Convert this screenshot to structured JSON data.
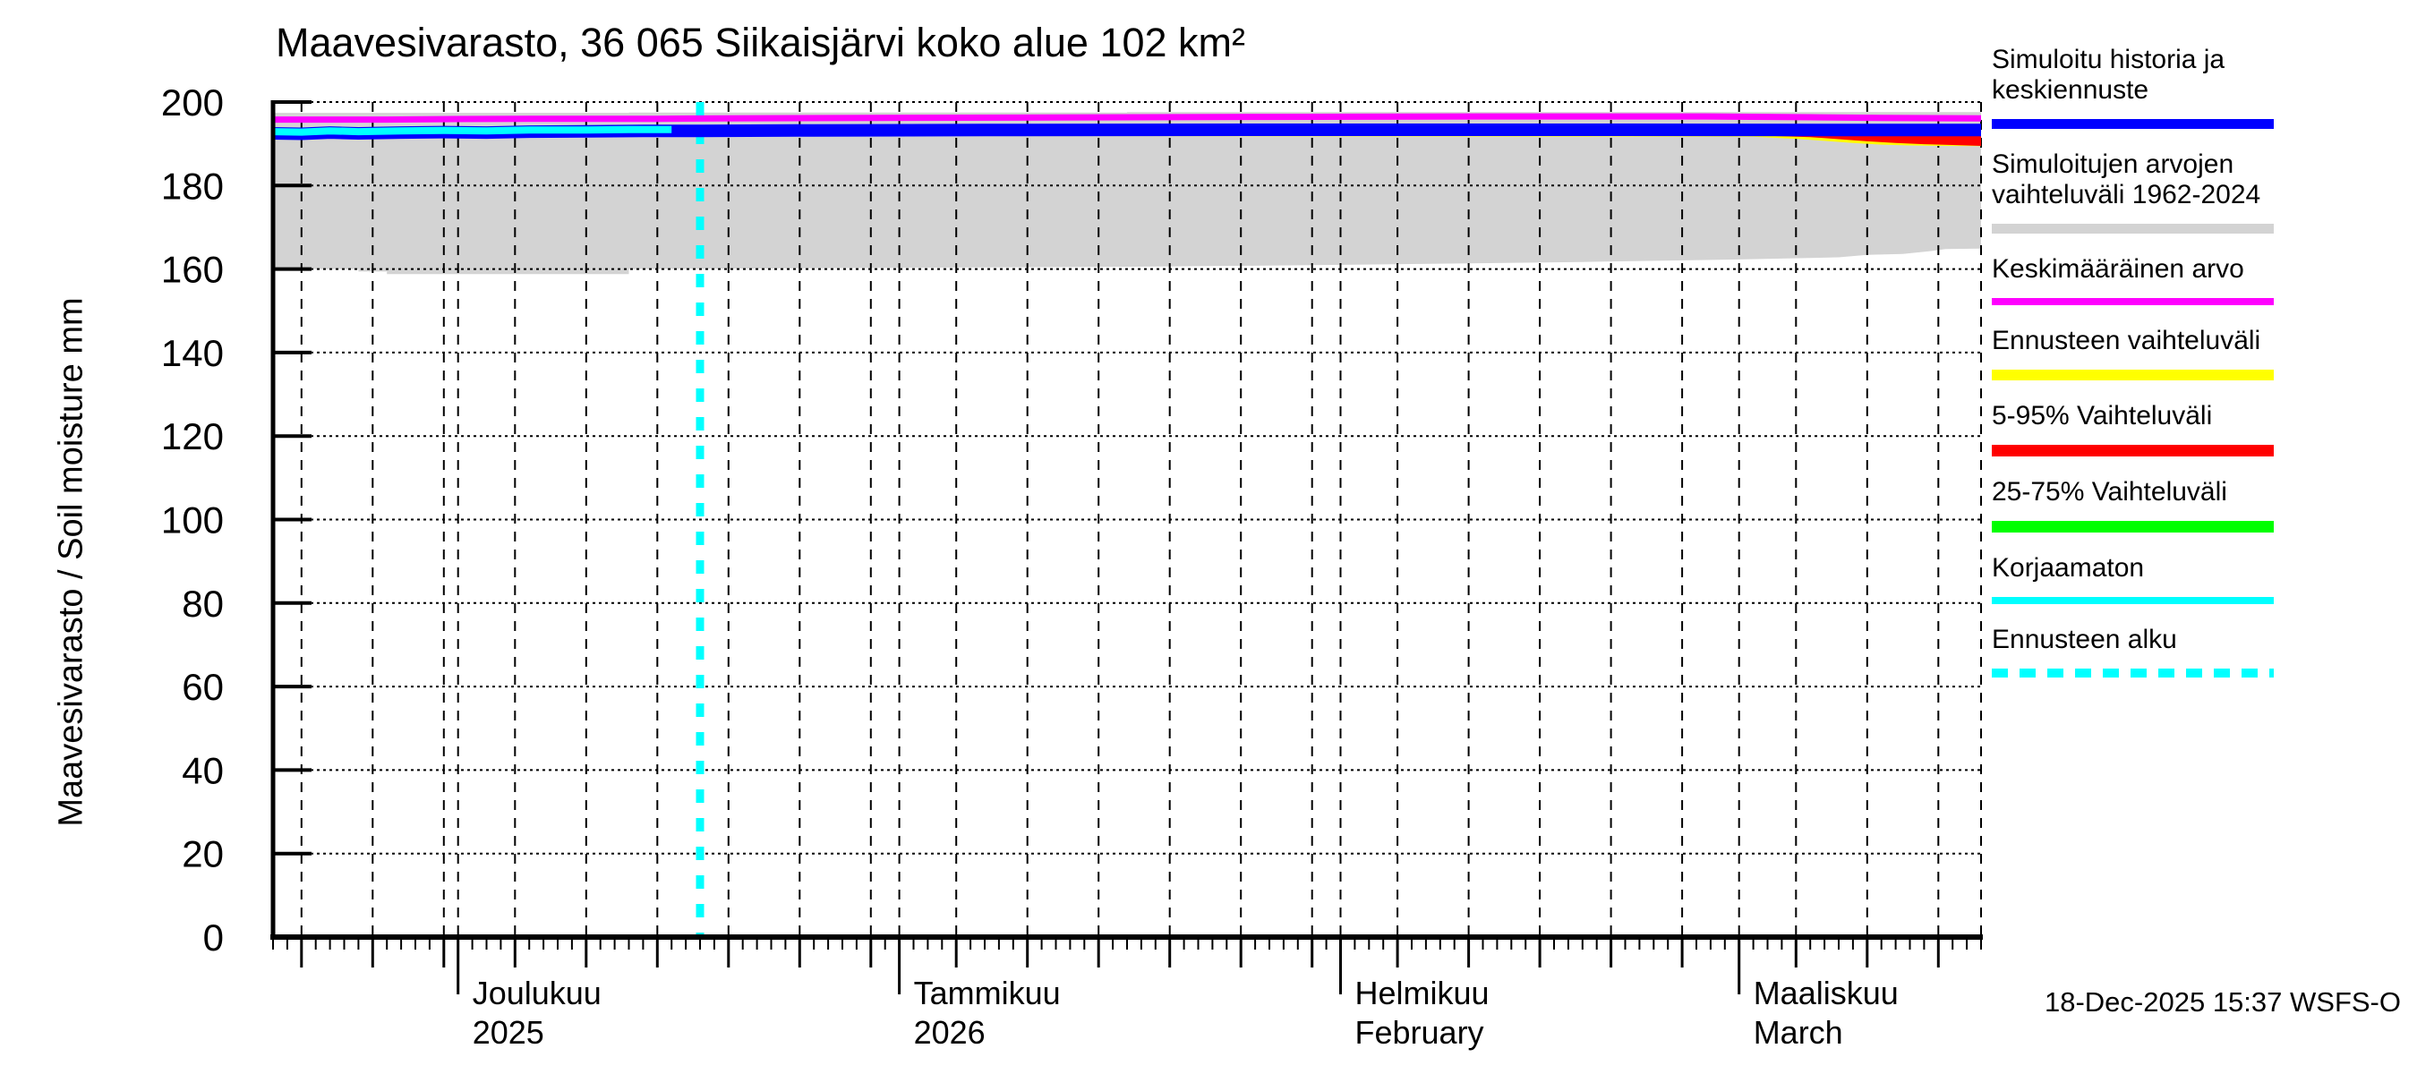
{
  "footer": {
    "timestamp": "18-Dec-2025 15:37 WSFS-O"
  },
  "legend": {
    "items": [
      {
        "lines": [
          "Simuloitu historia ja",
          "keskiennuste"
        ],
        "color": "#0000ff",
        "style": "solid",
        "thickness": 11
      },
      {
        "lines": [
          "Simuloitujen arvojen",
          "vaihteluväli 1962-2024"
        ],
        "color": "#d3d3d3",
        "style": "solid",
        "thickness": 11
      },
      {
        "lines": [
          "Keskimääräinen arvo"
        ],
        "color": "#ff00ff",
        "style": "solid",
        "thickness": 8
      },
      {
        "lines": [
          "Ennusteen vaihteluväli"
        ],
        "color": "#ffff00",
        "style": "solid",
        "thickness": 12
      },
      {
        "lines": [
          "5-95% Vaihteluväli"
        ],
        "color": "#ff0000",
        "style": "solid",
        "thickness": 13
      },
      {
        "lines": [
          "25-75% Vaihteluväli"
        ],
        "color": "#00ff00",
        "style": "solid",
        "thickness": 13
      },
      {
        "lines": [
          "Korjaamaton"
        ],
        "color": "#00ffff",
        "style": "solid",
        "thickness": 8
      },
      {
        "lines": [
          "Ennusteen alku"
        ],
        "color": "#00ffff",
        "style": "dashed",
        "thickness": 10
      }
    ]
  },
  "chart_data": {
    "type": "line",
    "title": "Maavesivarasto, 36 065 Siikaisjärvi koko alue 102 km²",
    "ylabel": "Maavesivarasto / Soil moisture  mm",
    "ylim": [
      0,
      200
    ],
    "y_ticks": [
      0,
      20,
      40,
      60,
      80,
      100,
      120,
      140,
      160,
      180,
      200
    ],
    "grid": "on",
    "legend_position": "right",
    "total_days": 120,
    "forecast_start_day": 30,
    "months": [
      {
        "label": "Joulukuu",
        "sublabel": "2025",
        "day": 13
      },
      {
        "label": "Tammikuu",
        "sublabel": "2026",
        "day": 44
      },
      {
        "label": "Helmikuu",
        "sublabel": "February",
        "day": 75
      },
      {
        "label": "Maaliskuu",
        "sublabel": "March",
        "day": 103
      }
    ],
    "grid_days": [
      2,
      7,
      12,
      17,
      22,
      27,
      32,
      37,
      42,
      48,
      53,
      58,
      63,
      68,
      73,
      79,
      84,
      89,
      94,
      99,
      107,
      112,
      117
    ],
    "plot": {
      "x0": 305,
      "x1": 2213,
      "y0": 1047,
      "y_top": 114
    },
    "colors": {
      "simulated": "#0000ff",
      "sim_range": "#d3d3d3",
      "mean": "#ff00ff",
      "forecast_range": "#ffff00",
      "range_5_95": "#ff0000",
      "range_25_75": "#00ff00",
      "uncorrected": "#00ffff",
      "forecast_start": "#00ffff",
      "axis": "#000000"
    },
    "series": {
      "sim_range": {
        "top": [
          [
            0,
            197.4
          ],
          [
            25,
            197.4
          ],
          [
            25,
            197.5
          ],
          [
            60,
            197.5
          ],
          [
            60,
            197.6
          ],
          [
            120,
            197.6
          ]
        ],
        "bottom": [
          [
            0,
            160
          ],
          [
            6,
            160
          ],
          [
            6,
            159.4
          ],
          [
            8,
            159.4
          ],
          [
            8,
            158.8
          ],
          [
            25,
            158.8
          ],
          [
            25,
            160
          ],
          [
            44,
            160.3
          ],
          [
            58,
            160.5
          ],
          [
            69,
            160.8
          ],
          [
            80,
            161.2
          ],
          [
            92,
            161.7
          ],
          [
            103,
            162.3
          ],
          [
            110,
            162.8
          ],
          [
            112,
            163.4
          ],
          [
            114.5,
            163.6
          ],
          [
            116.5,
            164.3
          ],
          [
            117.5,
            164.8
          ],
          [
            120,
            164.9
          ]
        ]
      },
      "forecast_range": {
        "top": [
          [
            30,
            194.0
          ],
          [
            120,
            194.0
          ]
        ],
        "bottom": [
          [
            30,
            191.9
          ],
          [
            104,
            191.7
          ],
          [
            107,
            191.2
          ],
          [
            109,
            190.7
          ],
          [
            111,
            190.2
          ],
          [
            113,
            189.8
          ],
          [
            115,
            189.6
          ],
          [
            117,
            189.5
          ],
          [
            120,
            189.45
          ]
        ]
      },
      "range_5_95": {
        "top": [
          [
            30,
            194.0
          ],
          [
            120,
            194.0
          ]
        ],
        "bottom": [
          [
            30,
            192.0
          ],
          [
            105,
            191.9
          ],
          [
            108,
            191.6
          ],
          [
            110,
            191.1
          ],
          [
            112,
            190.6
          ],
          [
            114,
            190.2
          ],
          [
            116,
            189.9
          ],
          [
            118,
            189.7
          ],
          [
            120,
            189.5
          ]
        ]
      },
      "range_25_75": {
        "top": [
          [
            30,
            194.0
          ],
          [
            120,
            194.0
          ]
        ],
        "bottom": [
          [
            30,
            192.3
          ],
          [
            120,
            192.3
          ]
        ]
      },
      "simulated": [
        [
          0,
          192.5
        ],
        [
          2,
          192.4
        ],
        [
          4,
          192.7
        ],
        [
          6,
          192.5
        ],
        [
          9,
          192.7
        ],
        [
          12,
          192.8
        ],
        [
          15,
          192.7
        ],
        [
          18,
          192.9
        ],
        [
          22,
          193.0
        ],
        [
          26,
          193.1
        ],
        [
          30,
          193.1
        ],
        [
          38,
          193.2
        ],
        [
          50,
          193.3
        ],
        [
          70,
          193.35
        ],
        [
          95,
          193.35
        ],
        [
          110,
          193.3
        ],
        [
          120,
          193.3
        ]
      ],
      "uncorrected": [
        [
          0,
          192.9
        ],
        [
          2,
          192.8
        ],
        [
          4,
          193.1
        ],
        [
          6,
          192.9
        ],
        [
          9,
          193.1
        ],
        [
          12,
          193.2
        ],
        [
          15,
          193.1
        ],
        [
          18,
          193.3
        ],
        [
          22,
          193.3
        ],
        [
          25,
          193.4
        ],
        [
          28,
          193.4
        ]
      ],
      "mean": [
        [
          0,
          195.8
        ],
        [
          8,
          195.8
        ],
        [
          12,
          195.9
        ],
        [
          18,
          196.0
        ],
        [
          27,
          196.0
        ],
        [
          32,
          196.1
        ],
        [
          42,
          196.2
        ],
        [
          55,
          196.3
        ],
        [
          70,
          196.45
        ],
        [
          85,
          196.55
        ],
        [
          100,
          196.55
        ],
        [
          108,
          196.35
        ],
        [
          113,
          196.2
        ],
        [
          120,
          196.1
        ]
      ]
    }
  }
}
